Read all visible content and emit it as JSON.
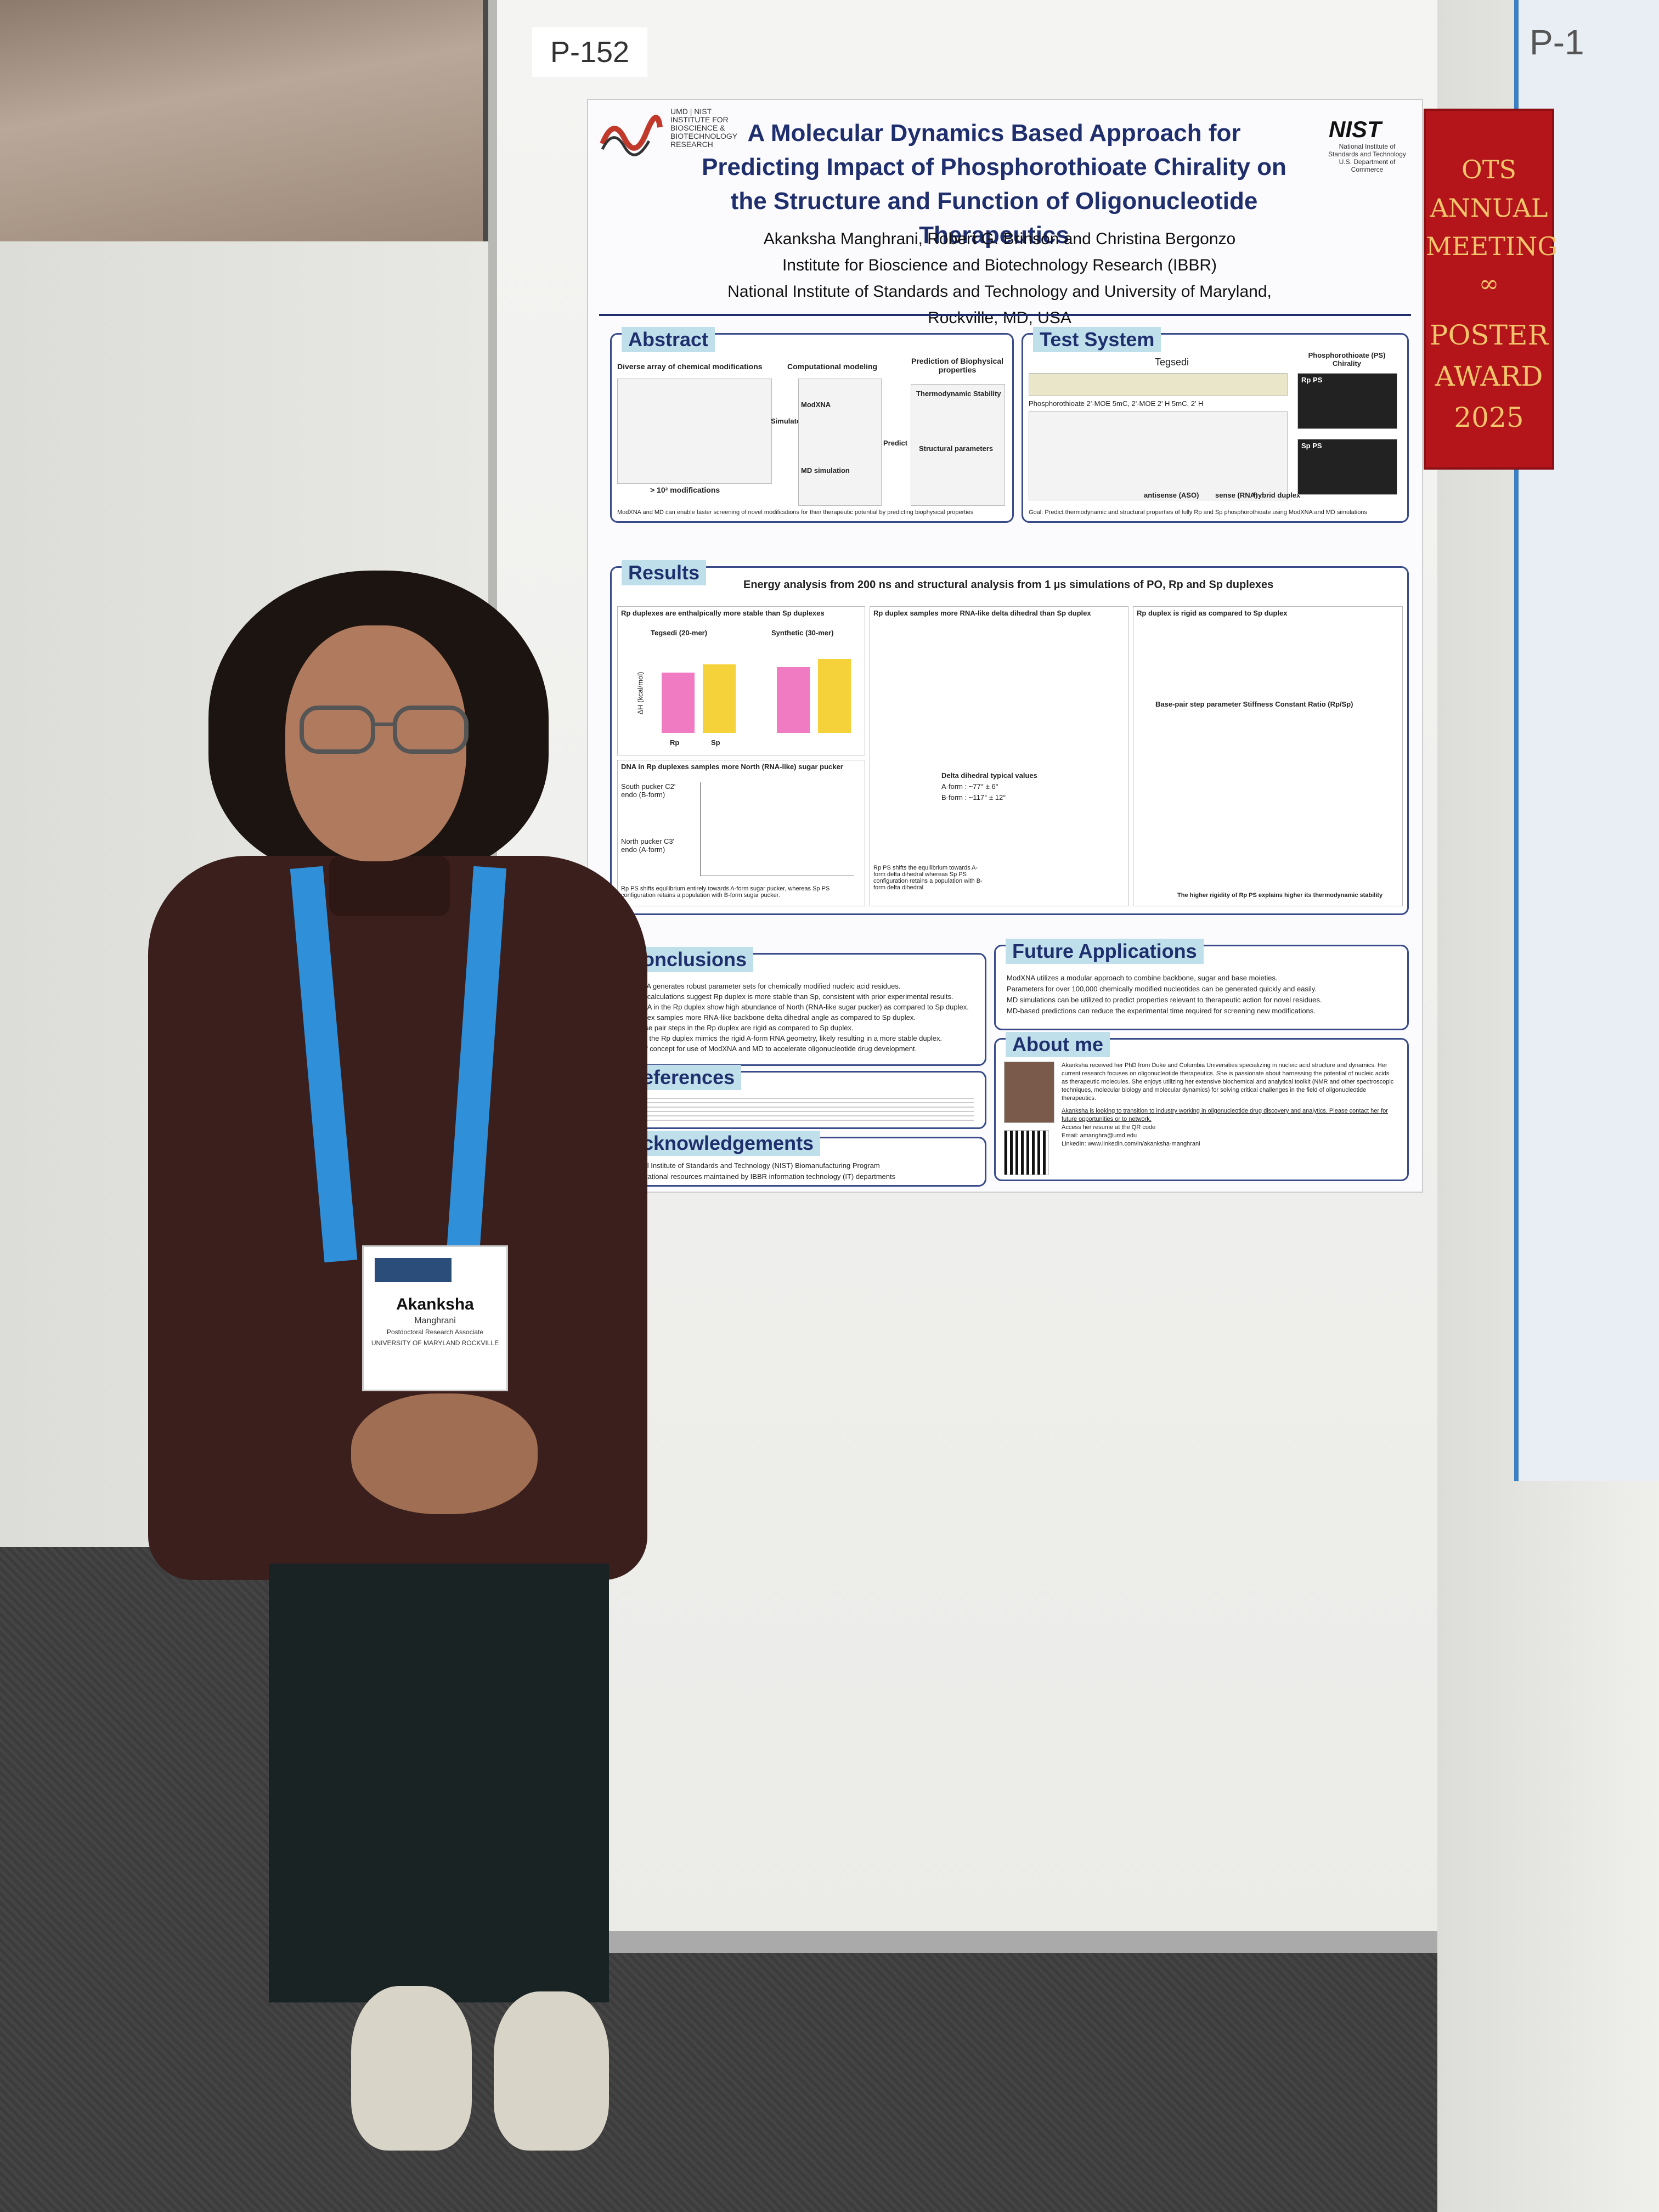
{
  "scene": {
    "label": "P-152",
    "right_poster_heading": "P-1"
  },
  "poster": {
    "logo_left_text": "UMD | NIST\nINSTITUTE FOR\nBIOSCIENCE &\nBIOTECHNOLOGY\nRESEARCH",
    "logo_right_mark": "NIST",
    "logo_right_sub": "National Institute of\nStandards and Technology\nU.S. Department of Commerce",
    "title_line1": "A Molecular Dynamics Based Approach for",
    "title_line2": "Predicting Impact of Phosphorothioate Chirality on",
    "title_line3": "the Structure and Function of Oligonucleotide Therapeutics",
    "authors": "Akanksha Manghrani, Robert G. Brinson and Christina Bergonzo",
    "institute": "Institute for Bioscience and Biotechnology Research (IBBR)",
    "affiliation": "National Institute of Standards and Technology and University of Maryland, Rockville, MD, USA",
    "sections": {
      "abstract": {
        "title": "Abstract",
        "sub1": "Diverse array of chemical modifications",
        "sub2": "Computational modeling",
        "sub3": "Prediction of Biophysical properties",
        "modxna": "ModXNA",
        "md": "MD simulation",
        "simulate": "Simulate",
        "predict": "Predict",
        "thermo": "Thermodynamic Stability",
        "structural": "Structural parameters",
        "mods": "> 10² modifications",
        "footer": "ModXNA and MD can enable faster screening of novel modifications for their therapeutic potential by predicting biophysical properties"
      },
      "test_system": {
        "title": "Test System",
        "drug": "Tegsedi",
        "chirality": "Phosphorothioate (PS) Chirality",
        "rp": "Rp PS",
        "sp": "Sp PS",
        "legend": "Phosphorothioate   2'-MOE   5mC, 2'-MOE   2' H   5mC, 2' H",
        "antisense": "antisense (ASO)",
        "sense": "sense (RNA)",
        "hybrid": "hybrid duplex",
        "goal": "Goal: Predict thermodynamic and structural properties of fully Rp and Sp phosphorothioate using ModXNA and MD simulations"
      },
      "results": {
        "title": "Results",
        "heading": "Energy analysis from 200 ns and structural analysis from 1 µs simulations of PO, Rp and Sp duplexes",
        "panel1": "Rp duplexes are enthalpically more stable than Sp duplexes",
        "tegsedi": "Tegsedi (20-mer)",
        "synthetic": "Synthetic (30-mer)",
        "ylabel": "ΔH (kcal/mol)",
        "rp_label": "Rp",
        "sp_label": "Sp",
        "panel2": "DNA in Rp duplexes samples more North (RNA-like) sugar pucker",
        "south": "South pucker C2' endo (B-form)",
        "north": "North pucker C3' endo (A-form)",
        "panel2_footer": "Rp PS shifts equilibrium entirely towards A-form sugar pucker, whereas Sp PS configuration retains a population with B-form sugar pucker.",
        "panel3": "Rp duplex samples more RNA-like delta dihedral than Sp duplex",
        "delta_title": "Delta dihedral typical values",
        "a_form": "A-form : ~77° ± 6°",
        "b_form": "B-form : ~117° ± 12°",
        "panel3_footer": "Rp PS shifts the equilibrium towards A-form delta dihedral whereas Sp PS configuration retains a population with B-form delta dihedral",
        "panel4": "Rp duplex is rigid as compared to Sp duplex",
        "stiffness": "Base-pair step parameter Stiffness Constant Ratio (Rp/Sp)",
        "panel4_footer": "The higher rigidity of Rp PS explains higher its thermodynamic stability"
      },
      "conclusions": {
        "title": "Conclusions",
        "items": [
          "ModXNA generates robust parameter sets for chemically modified nucleic acid residues.",
          "Energy calculations suggest Rp duplex is more stable than Sp, consistent with prior experimental results.",
          "The DNA in the Rp duplex show high abundance of North (RNA-like sugar pucker) as compared to Sp duplex.",
          "Rp duplex samples more RNA-like backbone delta dihedral angle as compared to Sp duplex.",
          "The base pair steps in the Rp duplex are rigid as compared to Sp duplex.",
          "Overall, the Rp duplex mimics the rigid A-form RNA geometry, likely resulting in a more stable duplex.",
          "Proof of concept for use of ModXNA and MD to accelerate oligonucleotide drug development."
        ]
      },
      "future": {
        "title": "Future Applications",
        "items": [
          "ModXNA utilizes a modular approach to combine backbone, sugar and base moieties.",
          "Parameters for over 100,000 chemically modified nucleotides can be generated quickly and easily.",
          "MD simulations can be utilized to predict properties relevant to therapeutic action for novel residues.",
          "MD-based predictions can reduce the experimental time required for screening new modifications."
        ]
      },
      "references": {
        "title": "References"
      },
      "about": {
        "title": "About me",
        "text": "Akanksha received her PhD from Duke and Columbia Universities specializing in nucleic acid structure and dynamics. Her current research focuses on oligonucleotide therapeutics. She is passionate about harnessing the potential of nucleic acids as therapeutic molecules. She enjoys utilizing her extensive biochemical and analytical toolkit (NMR and other spectroscopic techniques, molecular biology and molecular dynamics) for solving critical challenges in the field of oligonucleotide therapeutics.",
        "job": "Akanksha is looking to transition to industry working in oligonucleotide drug discovery and analytics. Please contact her for future opportunities or to network.",
        "resume": "Access her resume at the QR code",
        "email": "Email: amanghra@umd.edu",
        "linkedin": "LinkedIn: www.linkedin.com/in/akanksha-manghrani"
      },
      "acknowledgements": {
        "title": "Acknowledgements",
        "items": [
          "National Institute of Standards and Technology (NIST) Biomanufacturing Program",
          "Computational resources maintained by IBBR information technology (IT) departments"
        ]
      }
    }
  },
  "award": {
    "line1": "OTS",
    "line2": "ANNUAL",
    "line3": "MEETING",
    "line4": "POSTER",
    "line5": "AWARD",
    "line6": "2025"
  },
  "badge": {
    "name": "Akanksha",
    "surname": "Manghrani",
    "role": "Postdoctoral Research Associate",
    "org": "UNIVERSITY OF MARYLAND ROCKVILLE"
  },
  "colors": {
    "title_blue": "#1f2f6e",
    "section_tab": "#bfe0ea",
    "ribbon_red": "#b3151b",
    "ribbon_gold": "#f2c46b",
    "lanyard_blue": "#2f8fd8",
    "bar_orange": "#ef8a6e",
    "rp_pink": "#f07bc3",
    "sp_yellow": "#f6d23a"
  }
}
